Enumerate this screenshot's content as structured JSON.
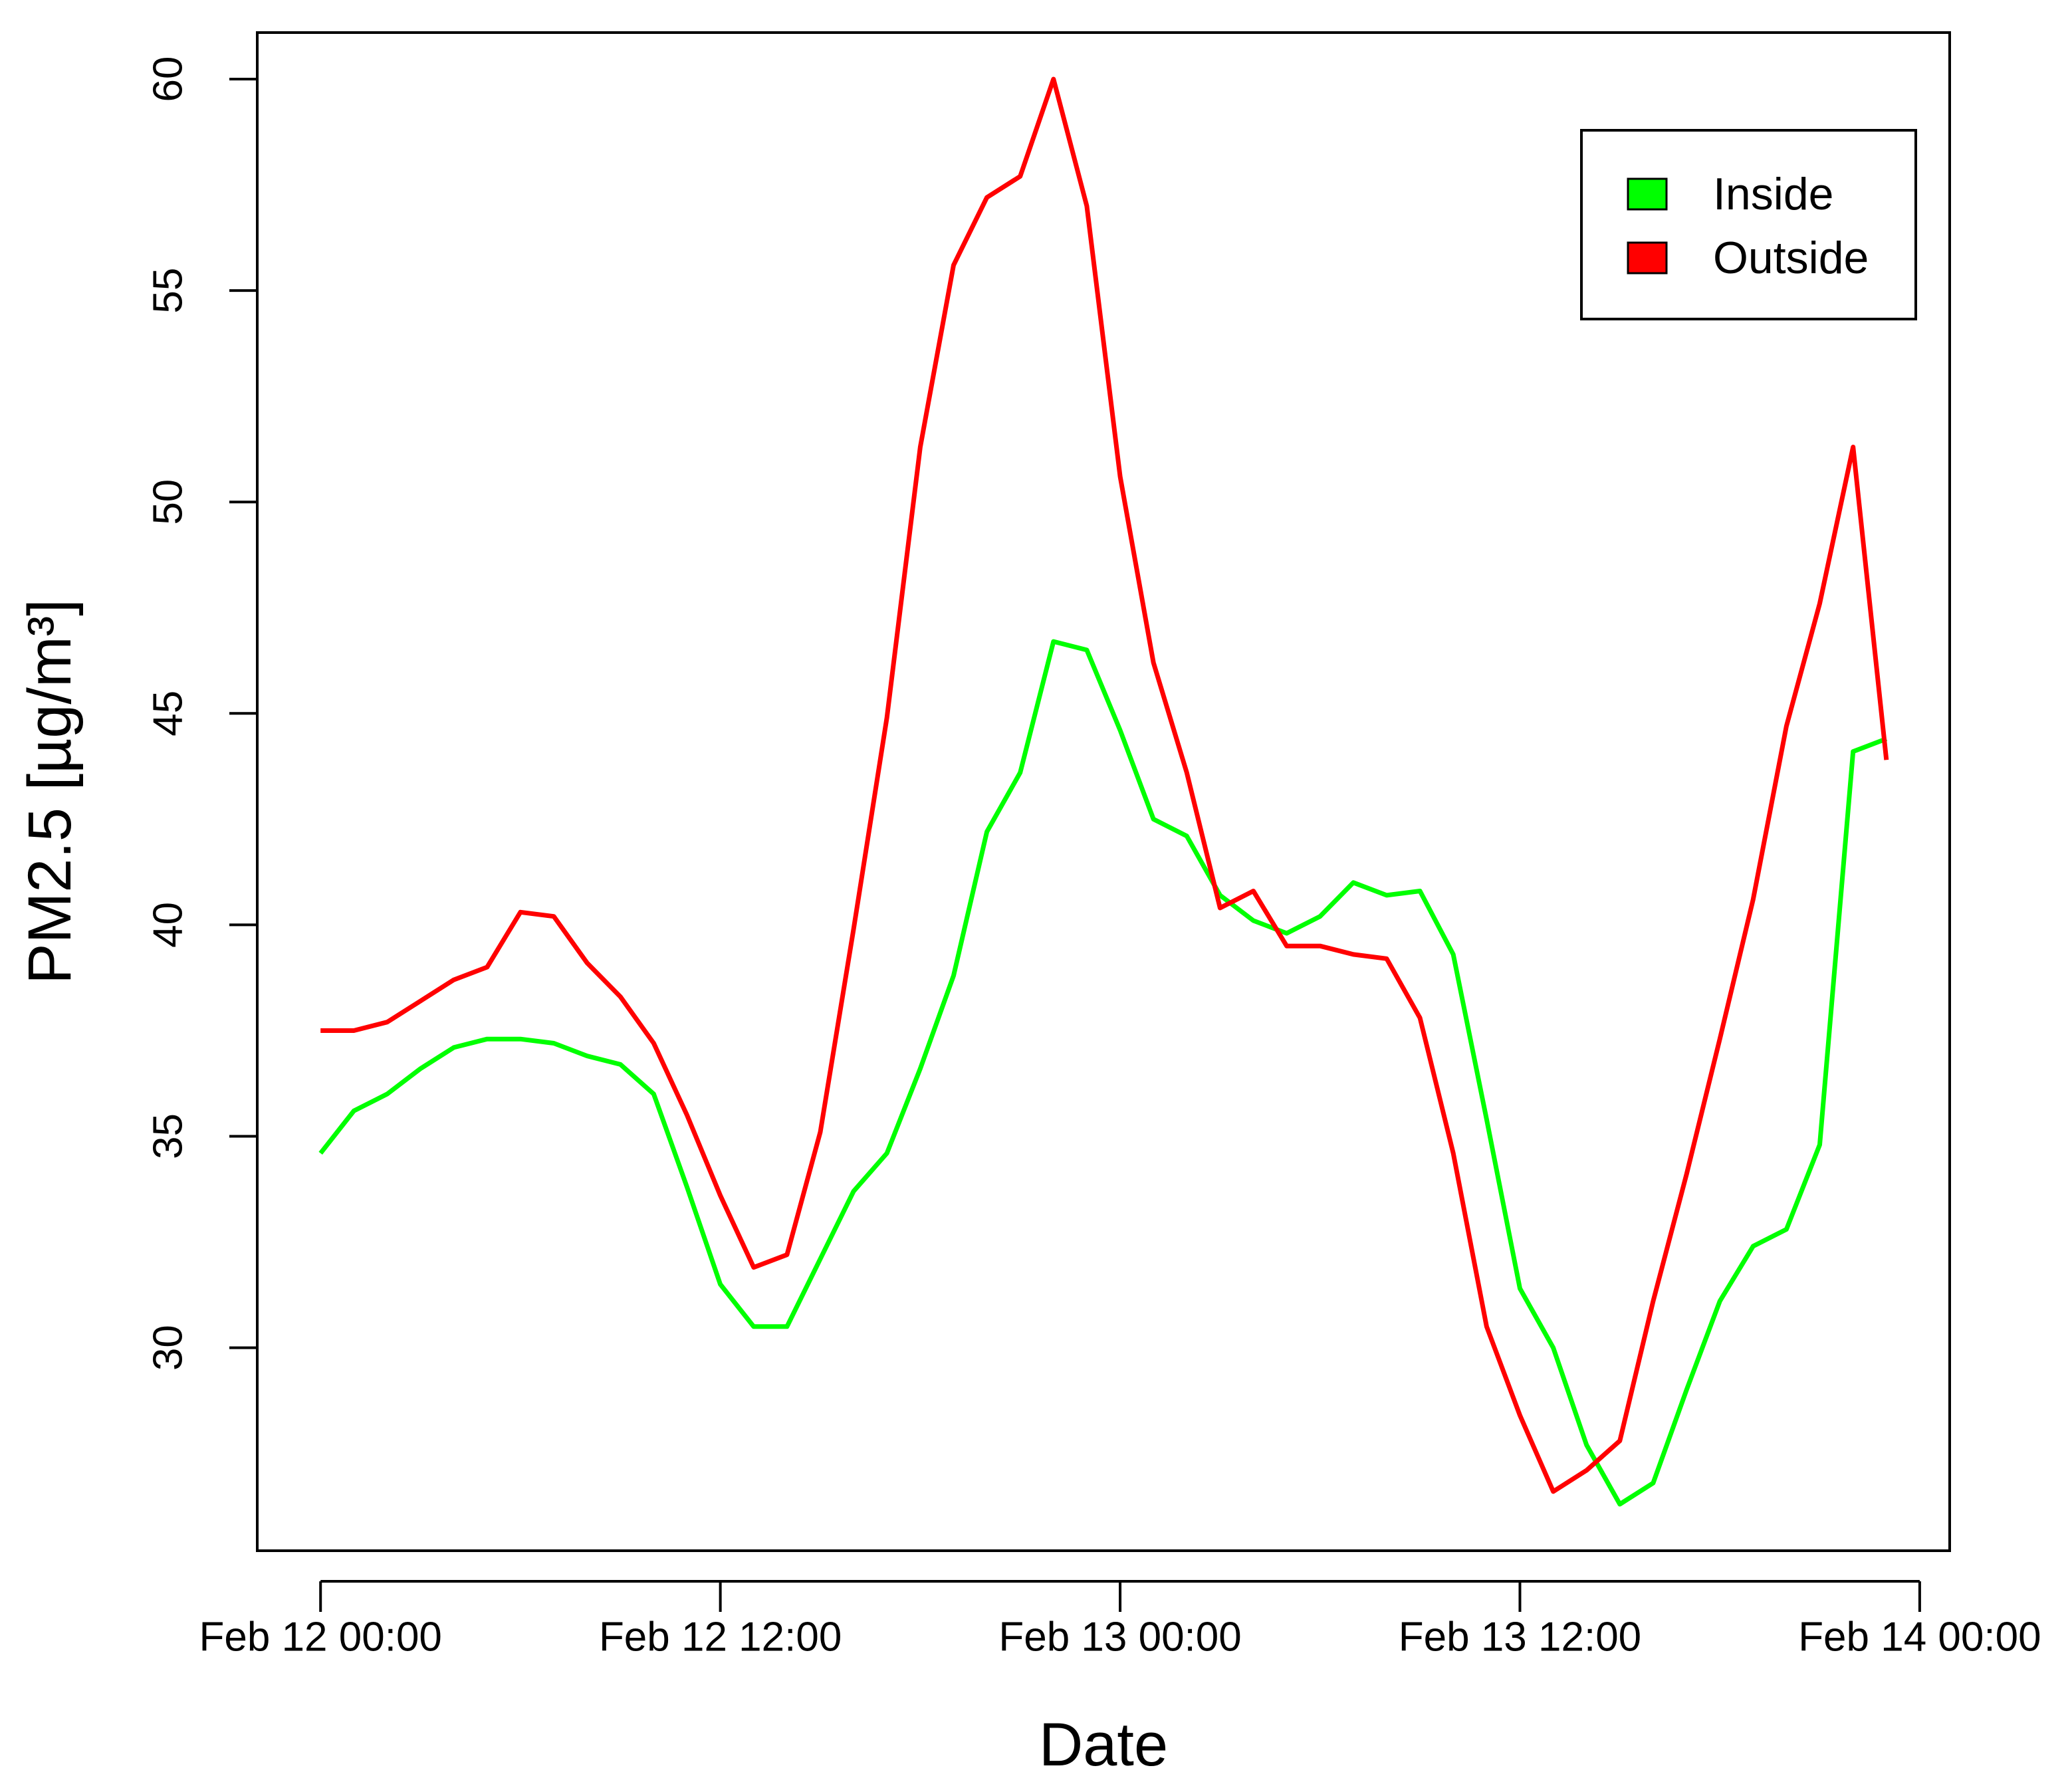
{
  "chart_data": {
    "type": "line",
    "xlabel": "Date",
    "ylabel": "PM2.5 [µg/m³]",
    "x_unit": "hours",
    "x_ticks": [
      {
        "value": 0,
        "label": "Feb 12 00:00"
      },
      {
        "value": 12,
        "label": "Feb 12 12:00"
      },
      {
        "value": 24,
        "label": "Feb 13 00:00"
      },
      {
        "value": 36,
        "label": "Feb 13 12:00"
      },
      {
        "value": 48,
        "label": "Feb 14 00:00"
      }
    ],
    "y_ticks": [
      30,
      35,
      40,
      45,
      50,
      55,
      60
    ],
    "xlim": [
      -1.9,
      48.9
    ],
    "ylim": [
      25.2,
      61.1
    ],
    "grid": false,
    "legend_position": "top-right",
    "series": [
      {
        "name": "Inside",
        "color": "#00ff00",
        "x": [
          0,
          1,
          2,
          3,
          4,
          5,
          6,
          7,
          8,
          9,
          10,
          11,
          12,
          13,
          14,
          15,
          16,
          17,
          18,
          19,
          20,
          21,
          22,
          23,
          24,
          25,
          26,
          27,
          28,
          29,
          30,
          31,
          32,
          33,
          34,
          35,
          36,
          37,
          38,
          39,
          40,
          41,
          42,
          43,
          44,
          45,
          46,
          47
        ],
        "values": [
          34.6,
          35.6,
          36.0,
          36.6,
          37.1,
          37.3,
          37.3,
          37.2,
          36.9,
          36.7,
          36.0,
          33.8,
          31.5,
          30.5,
          30.5,
          32.1,
          33.7,
          34.6,
          36.6,
          38.8,
          42.2,
          43.6,
          46.7,
          46.5,
          44.6,
          42.5,
          42.1,
          40.7,
          40.1,
          39.8,
          40.2,
          41.0,
          40.7,
          40.8,
          39.3,
          35.4,
          31.4,
          30.0,
          27.7,
          26.3,
          26.8,
          29.0,
          31.1,
          32.4,
          32.8,
          34.8,
          44.1,
          44.4
        ]
      },
      {
        "name": "Outside",
        "color": "#ff0000",
        "x": [
          0,
          1,
          2,
          3,
          4,
          5,
          6,
          7,
          8,
          9,
          10,
          11,
          12,
          13,
          14,
          15,
          16,
          17,
          18,
          19,
          20,
          21,
          22,
          23,
          24,
          25,
          26,
          27,
          28,
          29,
          30,
          31,
          32,
          33,
          34,
          35,
          36,
          37,
          38,
          39,
          40,
          41,
          42,
          43,
          44,
          45,
          46,
          47
        ],
        "values": [
          37.5,
          37.5,
          37.7,
          38.2,
          38.7,
          39.0,
          40.3,
          40.2,
          39.1,
          38.3,
          37.2,
          35.5,
          33.6,
          31.9,
          32.2,
          35.1,
          39.9,
          44.9,
          51.3,
          55.6,
          57.2,
          57.7,
          60.0,
          57.0,
          50.6,
          46.2,
          43.6,
          40.4,
          40.8,
          39.5,
          39.5,
          39.3,
          39.2,
          37.8,
          34.6,
          30.5,
          28.4,
          26.6,
          27.1,
          27.8,
          31.1,
          34.1,
          37.3,
          40.6,
          44.7,
          47.6,
          51.3,
          43.9
        ]
      }
    ]
  }
}
